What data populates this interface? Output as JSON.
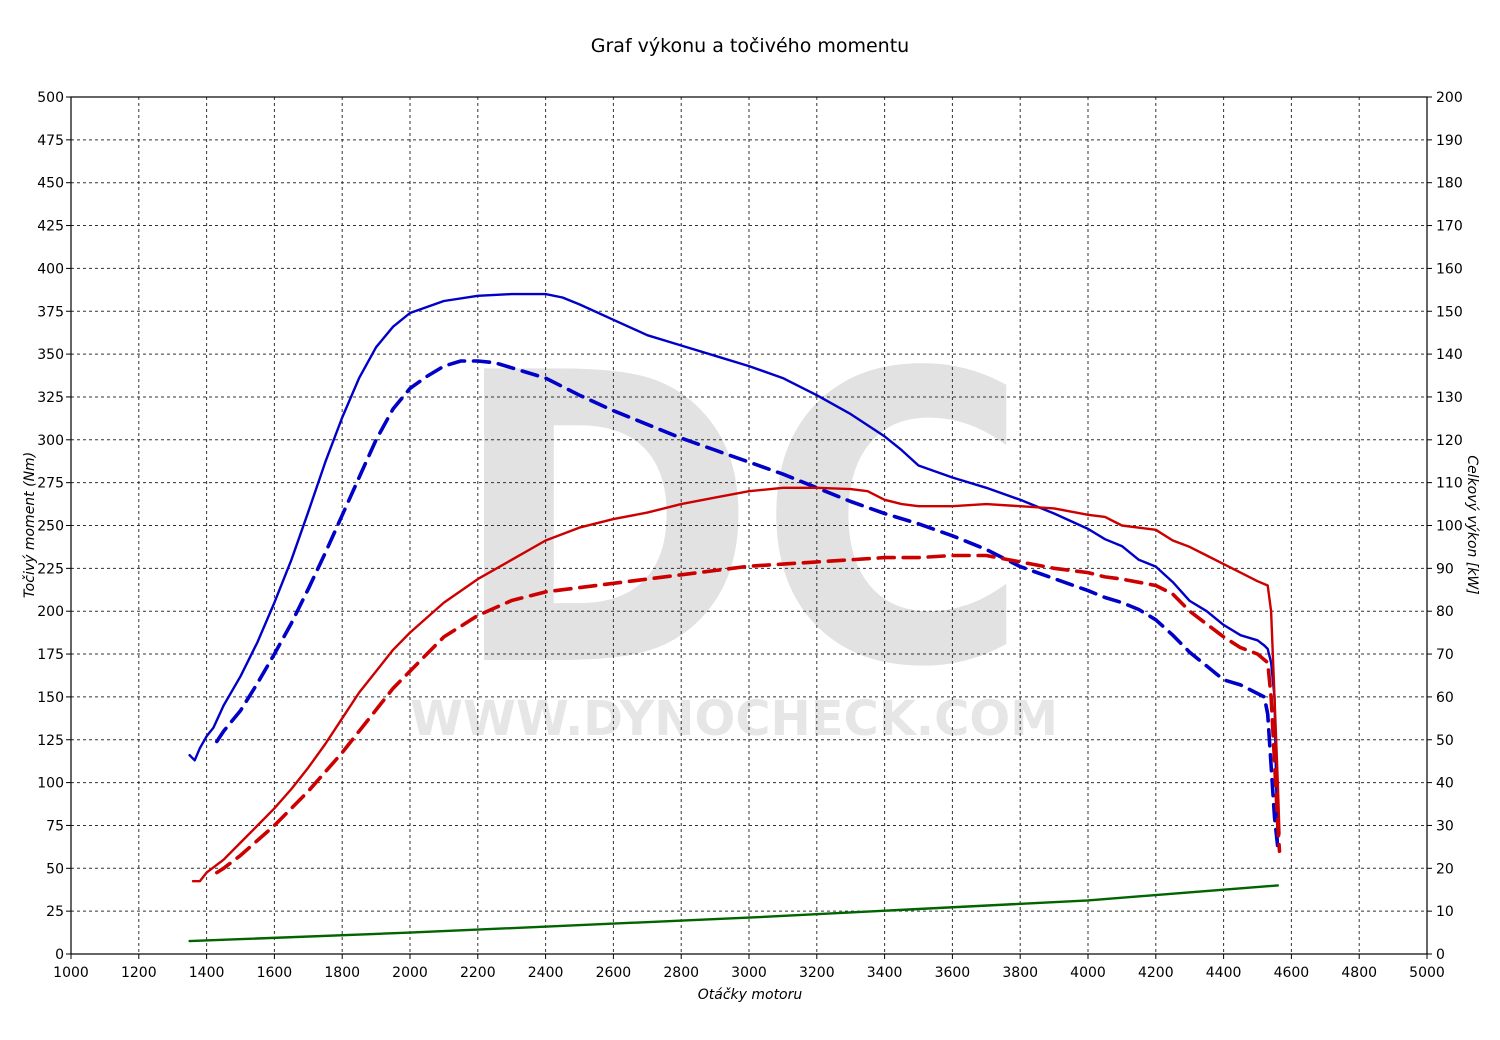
{
  "watermark": {
    "letters": "DC",
    "url": "WWW.DYNOCHECK.COM"
  },
  "chart_data": {
    "type": "line",
    "title": "Graf výkonu a točivého momentu",
    "xlabel": "Otáčky motoru",
    "ylabel_left": "Točivý moment (Nm)",
    "ylabel_right": "Celkový výkon [kW]",
    "xlim": [
      1000,
      5000
    ],
    "ylim_left": [
      0,
      500
    ],
    "ylim_right": [
      0,
      200
    ],
    "grid": true,
    "x_ticks": [
      "1000",
      "1200",
      "1400",
      "1600",
      "1800",
      "2000",
      "2200",
      "2400",
      "2600",
      "2800",
      "3000",
      "3200",
      "3400",
      "3600",
      "3800",
      "4000",
      "4200",
      "4400",
      "4600",
      "4800",
      "5000"
    ],
    "y_left_ticks": [
      "0",
      "25",
      "50",
      "75",
      "100",
      "125",
      "150",
      "175",
      "200",
      "225",
      "250",
      "275",
      "300",
      "325",
      "350",
      "375",
      "400",
      "425",
      "450",
      "475",
      "500"
    ],
    "y_right_ticks": [
      "0",
      "10",
      "20",
      "30",
      "40",
      "50",
      "60",
      "70",
      "80",
      "90",
      "100",
      "110",
      "120",
      "130",
      "140",
      "150",
      "160",
      "170",
      "180",
      "190",
      "200"
    ],
    "series": [
      {
        "axis": "left",
        "color": "#0000c8",
        "dash": false,
        "points": [
          [
            1350,
            116
          ],
          [
            1365,
            113
          ],
          [
            1380,
            120
          ],
          [
            1400,
            127
          ],
          [
            1420,
            132
          ],
          [
            1450,
            145
          ],
          [
            1500,
            162
          ],
          [
            1550,
            182
          ],
          [
            1600,
            205
          ],
          [
            1650,
            230
          ],
          [
            1700,
            258
          ],
          [
            1750,
            287
          ],
          [
            1800,
            313
          ],
          [
            1850,
            336
          ],
          [
            1900,
            354
          ],
          [
            1950,
            366
          ],
          [
            2000,
            374
          ],
          [
            2100,
            381
          ],
          [
            2200,
            384
          ],
          [
            2300,
            385
          ],
          [
            2400,
            385
          ],
          [
            2450,
            383
          ],
          [
            2500,
            379
          ],
          [
            2600,
            370
          ],
          [
            2700,
            361
          ],
          [
            2800,
            355
          ],
          [
            2900,
            349
          ],
          [
            3000,
            343
          ],
          [
            3100,
            336
          ],
          [
            3200,
            326
          ],
          [
            3300,
            315
          ],
          [
            3400,
            302
          ],
          [
            3450,
            294
          ],
          [
            3500,
            285
          ],
          [
            3600,
            278
          ],
          [
            3700,
            272
          ],
          [
            3800,
            265
          ],
          [
            3900,
            257
          ],
          [
            4000,
            248
          ],
          [
            4050,
            242
          ],
          [
            4100,
            238
          ],
          [
            4150,
            230
          ],
          [
            4200,
            226
          ],
          [
            4250,
            217
          ],
          [
            4300,
            206
          ],
          [
            4350,
            200
          ],
          [
            4400,
            192
          ],
          [
            4450,
            186
          ],
          [
            4500,
            183
          ],
          [
            4520,
            180
          ],
          [
            4530,
            178
          ],
          [
            4540,
            170
          ],
          [
            4550,
            150
          ],
          [
            4555,
            100
          ],
          [
            4560,
            65
          ],
          [
            4565,
            60
          ]
        ]
      },
      {
        "axis": "left",
        "color": "#0000c8",
        "dash": true,
        "points": [
          [
            1430,
            124
          ],
          [
            1450,
            130
          ],
          [
            1500,
            142
          ],
          [
            1550,
            158
          ],
          [
            1600,
            175
          ],
          [
            1650,
            193
          ],
          [
            1700,
            213
          ],
          [
            1750,
            234
          ],
          [
            1800,
            256
          ],
          [
            1850,
            278
          ],
          [
            1900,
            300
          ],
          [
            1950,
            318
          ],
          [
            2000,
            330
          ],
          [
            2050,
            337
          ],
          [
            2100,
            343
          ],
          [
            2150,
            346
          ],
          [
            2200,
            346
          ],
          [
            2250,
            345
          ],
          [
            2300,
            342
          ],
          [
            2400,
            336
          ],
          [
            2500,
            326
          ],
          [
            2600,
            317
          ],
          [
            2700,
            309
          ],
          [
            2800,
            301
          ],
          [
            2900,
            294
          ],
          [
            3000,
            287
          ],
          [
            3100,
            280
          ],
          [
            3200,
            272
          ],
          [
            3300,
            264
          ],
          [
            3400,
            257
          ],
          [
            3500,
            251
          ],
          [
            3600,
            244
          ],
          [
            3700,
            236
          ],
          [
            3800,
            226
          ],
          [
            3900,
            219
          ],
          [
            4000,
            212
          ],
          [
            4050,
            208
          ],
          [
            4100,
            205
          ],
          [
            4150,
            201
          ],
          [
            4200,
            195
          ],
          [
            4250,
            186
          ],
          [
            4300,
            176
          ],
          [
            4350,
            168
          ],
          [
            4400,
            160
          ],
          [
            4450,
            157
          ],
          [
            4500,
            152
          ],
          [
            4520,
            150
          ],
          [
            4530,
            140
          ],
          [
            4540,
            110
          ],
          [
            4550,
            80
          ],
          [
            4560,
            62
          ]
        ]
      },
      {
        "axis": "right",
        "color": "#cc0000",
        "dash": false,
        "points": [
          [
            1360,
            17
          ],
          [
            1380,
            17
          ],
          [
            1400,
            19
          ],
          [
            1450,
            22
          ],
          [
            1500,
            26
          ],
          [
            1550,
            30
          ],
          [
            1600,
            34
          ],
          [
            1650,
            38.5
          ],
          [
            1700,
            43.5
          ],
          [
            1750,
            49
          ],
          [
            1800,
            55
          ],
          [
            1850,
            61
          ],
          [
            1900,
            66
          ],
          [
            1950,
            71
          ],
          [
            2000,
            75
          ],
          [
            2050,
            78.5
          ],
          [
            2100,
            82
          ],
          [
            2200,
            87.5
          ],
          [
            2300,
            92
          ],
          [
            2400,
            96.5
          ],
          [
            2500,
            99.5
          ],
          [
            2600,
            101.5
          ],
          [
            2700,
            103
          ],
          [
            2800,
            105
          ],
          [
            2900,
            106.5
          ],
          [
            3000,
            108
          ],
          [
            3100,
            108.8
          ],
          [
            3200,
            108.8
          ],
          [
            3300,
            108.5
          ],
          [
            3350,
            108
          ],
          [
            3400,
            106
          ],
          [
            3450,
            105
          ],
          [
            3500,
            104.5
          ],
          [
            3600,
            104.5
          ],
          [
            3700,
            105
          ],
          [
            3800,
            104.5
          ],
          [
            3900,
            104
          ],
          [
            4000,
            102.5
          ],
          [
            4050,
            102
          ],
          [
            4100,
            100
          ],
          [
            4200,
            99
          ],
          [
            4250,
            96.5
          ],
          [
            4300,
            95
          ],
          [
            4350,
            93
          ],
          [
            4400,
            91
          ],
          [
            4450,
            89
          ],
          [
            4500,
            87
          ],
          [
            4530,
            86
          ],
          [
            4540,
            80
          ],
          [
            4550,
            60
          ],
          [
            4560,
            40
          ],
          [
            4565,
            28
          ]
        ]
      },
      {
        "axis": "right",
        "color": "#cc0000",
        "dash": true,
        "points": [
          [
            1430,
            19
          ],
          [
            1450,
            20
          ],
          [
            1500,
            23
          ],
          [
            1550,
            26.5
          ],
          [
            1600,
            30
          ],
          [
            1650,
            34
          ],
          [
            1700,
            38
          ],
          [
            1750,
            42.5
          ],
          [
            1800,
            47
          ],
          [
            1850,
            52
          ],
          [
            1900,
            57
          ],
          [
            1950,
            62
          ],
          [
            2000,
            66
          ],
          [
            2050,
            70
          ],
          [
            2100,
            74
          ],
          [
            2200,
            79
          ],
          [
            2300,
            82.5
          ],
          [
            2400,
            84.5
          ],
          [
            2500,
            85.5
          ],
          [
            2600,
            86.5
          ],
          [
            2700,
            87.5
          ],
          [
            2800,
            88.5
          ],
          [
            2900,
            89.5
          ],
          [
            3000,
            90.5
          ],
          [
            3100,
            91
          ],
          [
            3200,
            91.5
          ],
          [
            3300,
            92
          ],
          [
            3400,
            92.5
          ],
          [
            3500,
            92.5
          ],
          [
            3600,
            93
          ],
          [
            3700,
            93
          ],
          [
            3800,
            91.5
          ],
          [
            3900,
            90
          ],
          [
            4000,
            89
          ],
          [
            4050,
            88
          ],
          [
            4100,
            87.5
          ],
          [
            4200,
            86
          ],
          [
            4250,
            84
          ],
          [
            4300,
            80
          ],
          [
            4350,
            77
          ],
          [
            4400,
            74
          ],
          [
            4450,
            71.5
          ],
          [
            4500,
            70
          ],
          [
            4530,
            68
          ],
          [
            4540,
            60
          ],
          [
            4550,
            45
          ],
          [
            4560,
            30
          ],
          [
            4565,
            24
          ]
        ]
      },
      {
        "axis": "right",
        "color": "#006400",
        "dash": false,
        "points": [
          [
            1350,
            3
          ],
          [
            2000,
            5
          ],
          [
            3000,
            8.5
          ],
          [
            4000,
            12.5
          ],
          [
            4560,
            16
          ]
        ]
      }
    ]
  }
}
